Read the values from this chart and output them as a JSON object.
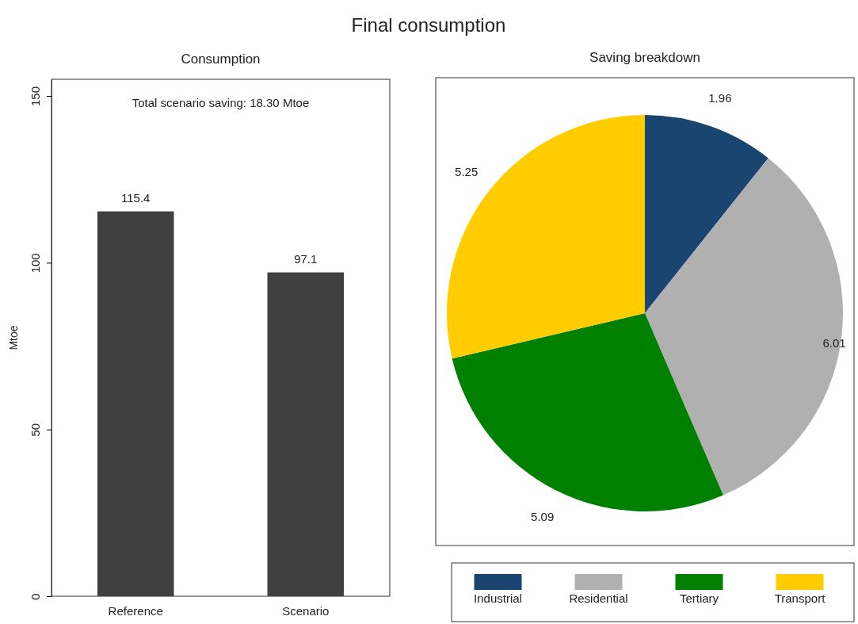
{
  "chart_data": [
    {
      "type": "bar",
      "title": "Final consumption",
      "subtitle": "Consumption",
      "ylabel": "Mtoe",
      "categories": [
        "Reference",
        "Scenario"
      ],
      "values": [
        115.4,
        97.1
      ],
      "color": "#404040",
      "ylim": [
        0,
        155
      ],
      "yticks": [
        0,
        50,
        100,
        150
      ],
      "data_labels": true,
      "annotations": [
        "Total scenario saving: 18.30 Mtoe"
      ]
    },
    {
      "type": "pie",
      "subtitle": "Saving breakdown",
      "categories": [
        "Industrial",
        "Residential",
        "Tertiary",
        "Transport"
      ],
      "values": [
        1.96,
        6.01,
        5.09,
        5.25
      ],
      "colors": [
        "#1a4570",
        "#b0b0b0",
        "#008000",
        "#ffcc00"
      ],
      "data_labels": true,
      "legend": "bottom"
    }
  ]
}
